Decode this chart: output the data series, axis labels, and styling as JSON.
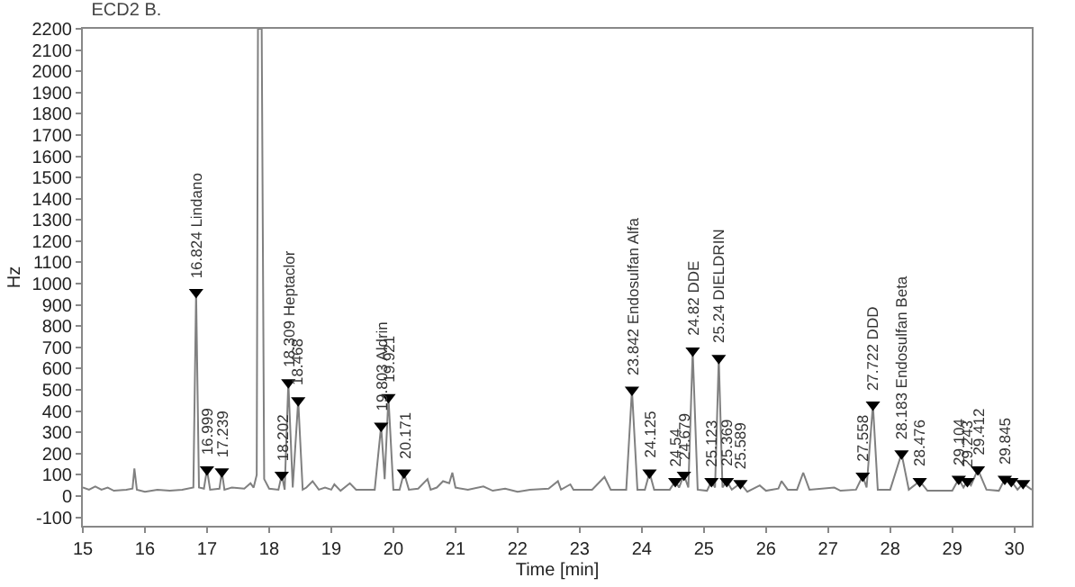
{
  "chart_data": {
    "type": "line",
    "title": "ECD2 B.",
    "xlabel": "Time [min]",
    "ylabel": "Hz",
    "xlim": [
      15,
      30.28
    ],
    "xticks": [
      15,
      16,
      17,
      18,
      19,
      20,
      21,
      22,
      23,
      24,
      25,
      26,
      27,
      28,
      29,
      30
    ],
    "ylim": [
      -140,
      2200
    ],
    "yticks": [
      -100,
      0,
      100,
      200,
      300,
      400,
      500,
      600,
      700,
      800,
      900,
      1000,
      1100,
      1200,
      1300,
      1400,
      1500,
      1600,
      1700,
      1800,
      1900,
      2000,
      2100,
      2200
    ],
    "grid": false,
    "series": [
      {
        "color": "#808080",
        "marker": "none",
        "line_style": "solid",
        "x": [
          15.0,
          15.1,
          15.2,
          15.3,
          15.4,
          15.5,
          15.7,
          15.8,
          15.83,
          15.87,
          16.0,
          16.2,
          16.4,
          16.6,
          16.78,
          16.824,
          16.87,
          16.95,
          16.999,
          17.05,
          17.2,
          17.239,
          17.28,
          17.4,
          17.6,
          17.7,
          17.75,
          17.8,
          17.82,
          17.88,
          17.92,
          18.0,
          18.15,
          18.202,
          18.25,
          18.309,
          18.38,
          18.468,
          18.54,
          18.6,
          18.7,
          18.8,
          18.9,
          19.0,
          19.05,
          19.15,
          19.3,
          19.4,
          19.7,
          19.803,
          19.86,
          19.921,
          20.0,
          20.1,
          20.171,
          20.25,
          20.4,
          20.55,
          20.6,
          20.7,
          20.8,
          20.9,
          20.95,
          21.0,
          21.2,
          21.45,
          21.6,
          21.8,
          22.0,
          22.2,
          22.5,
          22.65,
          22.7,
          22.85,
          22.9,
          23.2,
          23.4,
          23.5,
          23.75,
          23.842,
          23.93,
          24.05,
          24.125,
          24.2,
          24.45,
          24.54,
          24.6,
          24.679,
          24.75,
          24.82,
          24.9,
          25.05,
          25.123,
          25.18,
          25.24,
          25.3,
          25.369,
          25.45,
          25.589,
          25.7,
          25.9,
          26.0,
          26.2,
          26.25,
          26.35,
          26.5,
          26.6,
          26.7,
          27.1,
          27.2,
          27.45,
          27.558,
          27.62,
          27.722,
          27.8,
          28.0,
          28.183,
          28.3,
          28.476,
          28.6,
          29.0,
          29.104,
          29.18,
          29.243,
          29.3,
          29.412,
          29.55,
          29.75,
          29.845,
          29.95,
          30.05,
          30.14,
          30.28
        ],
        "values": [
          40,
          30,
          45,
          30,
          40,
          25,
          30,
          35,
          130,
          30,
          20,
          30,
          25,
          30,
          40,
          960,
          40,
          35,
          125,
          30,
          35,
          115,
          30,
          40,
          35,
          60,
          40,
          100,
          2200,
          2200,
          80,
          35,
          30,
          100,
          30,
          535,
          40,
          450,
          30,
          40,
          70,
          30,
          40,
          30,
          55,
          25,
          60,
          30,
          30,
          330,
          80,
          465,
          30,
          30,
          110,
          30,
          35,
          80,
          30,
          40,
          70,
          60,
          110,
          40,
          30,
          45,
          25,
          35,
          20,
          30,
          35,
          70,
          30,
          55,
          30,
          30,
          90,
          30,
          30,
          500,
          30,
          30,
          110,
          30,
          30,
          70,
          40,
          100,
          40,
          685,
          30,
          25,
          70,
          40,
          650,
          40,
          70,
          30,
          60,
          20,
          50,
          25,
          35,
          70,
          30,
          30,
          110,
          30,
          40,
          25,
          30,
          95,
          40,
          430,
          30,
          30,
          200,
          30,
          70,
          25,
          25,
          80,
          40,
          70,
          50,
          125,
          30,
          25,
          80,
          70,
          30,
          60,
          30
        ]
      },
      {
        "type": "scatter",
        "color": "#000000",
        "marker": "triangle",
        "x": [
          16.824,
          16.999,
          17.239,
          18.202,
          18.309,
          18.468,
          19.803,
          19.921,
          20.171,
          23.842,
          24.125,
          24.54,
          24.679,
          24.82,
          25.123,
          25.24,
          25.369,
          25.589,
          27.558,
          27.722,
          28.183,
          28.476,
          29.104,
          29.243,
          29.412,
          29.845,
          29.95,
          30.14
        ],
        "values": [
          960,
          125,
          115,
          100,
          535,
          450,
          330,
          465,
          110,
          500,
          110,
          70,
          100,
          685,
          70,
          650,
          70,
          60,
          95,
          430,
          200,
          70,
          80,
          70,
          125,
          80,
          70,
          60
        ]
      }
    ],
    "annotations": [
      {
        "text": "16.824 Lindano",
        "x": 16.824,
        "y": 960
      },
      {
        "text": "16.999",
        "x": 16.999,
        "y": 125
      },
      {
        "text": "17.239",
        "x": 17.239,
        "y": 115
      },
      {
        "text": "18.202",
        "x": 18.202,
        "y": 100
      },
      {
        "text": "18.309 Heptaclor",
        "x": 18.309,
        "y": 535
      },
      {
        "text": "18.468",
        "x": 18.468,
        "y": 450
      },
      {
        "text": "19.803 Aldrin",
        "x": 19.803,
        "y": 330
      },
      {
        "text": "19.921",
        "x": 19.921,
        "y": 465
      },
      {
        "text": "20.171",
        "x": 20.171,
        "y": 110
      },
      {
        "text": "23.842 Endosulfan Alfa",
        "x": 23.842,
        "y": 500
      },
      {
        "text": "24.125",
        "x": 24.125,
        "y": 110
      },
      {
        "text": "24.54",
        "x": 24.54,
        "y": 70
      },
      {
        "text": "24.679",
        "x": 24.679,
        "y": 100
      },
      {
        "text": "24.82 DDE",
        "x": 24.82,
        "y": 685
      },
      {
        "text": "25.123",
        "x": 25.123,
        "y": 70
      },
      {
        "text": "25.24 DIELDRIN",
        "x": 25.24,
        "y": 650
      },
      {
        "text": "25.369",
        "x": 25.369,
        "y": 70
      },
      {
        "text": "25.589",
        "x": 25.589,
        "y": 60
      },
      {
        "text": "27.558",
        "x": 27.558,
        "y": 95
      },
      {
        "text": "27.722 DDD",
        "x": 27.722,
        "y": 430
      },
      {
        "text": "28.183 Endosulfan Beta",
        "x": 28.183,
        "y": 200
      },
      {
        "text": "28.476",
        "x": 28.476,
        "y": 70
      },
      {
        "text": "29.104",
        "x": 29.104,
        "y": 80
      },
      {
        "text": "29.243",
        "x": 29.243,
        "y": 70
      },
      {
        "text": "29.412",
        "x": 29.412,
        "y": 125
      },
      {
        "text": "29.845",
        "x": 29.845,
        "y": 80
      }
    ]
  }
}
